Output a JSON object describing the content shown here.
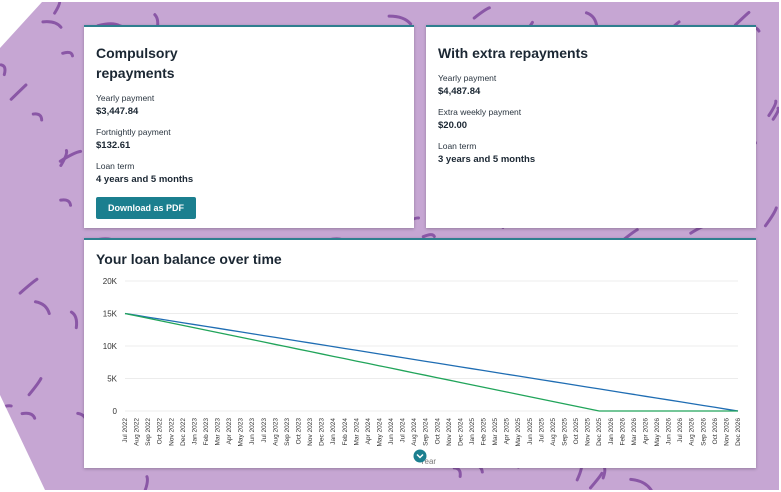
{
  "cards": [
    {
      "title": "Compulsory repayments",
      "fields": [
        {
          "label": "Yearly payment",
          "value": "$3,447.84"
        },
        {
          "label": "Fortnightly payment",
          "value": "$132.61"
        },
        {
          "label": "Loan term",
          "value": "4 years and 5 months"
        }
      ],
      "button": "Download as PDF"
    },
    {
      "title": "With extra repayments",
      "fields": [
        {
          "label": "Yearly payment",
          "value": "$4,487.84"
        },
        {
          "label": "Extra weekly payment",
          "value": "$20.00"
        },
        {
          "label": "Loan term",
          "value": "3 years and 5 months"
        }
      ]
    }
  ],
  "chart_data": {
    "type": "line",
    "title": "Your loan balance over time",
    "x_label": "Year",
    "categories": [
      "Jul 2022",
      "Aug 2022",
      "Sep 2022",
      "Oct 2022",
      "Nov 2022",
      "Dec 2022",
      "Jan 2023",
      "Feb 2023",
      "Mar 2023",
      "Apr 2023",
      "May 2023",
      "Jun 2023",
      "Jul 2023",
      "Aug 2023",
      "Sep 2023",
      "Oct 2023",
      "Nov 2023",
      "Dec 2023",
      "Jan 2024",
      "Feb 2024",
      "Mar 2024",
      "Apr 2024",
      "May 2024",
      "Jun 2024",
      "Jul 2024",
      "Aug 2024",
      "Sep 2024",
      "Oct 2024",
      "Nov 2024",
      "Dec 2024",
      "Jan 2025",
      "Feb 2025",
      "Mar 2025",
      "Apr 2025",
      "May 2025",
      "Jun 2025",
      "Jul 2025",
      "Aug 2025",
      "Sep 2025",
      "Oct 2025",
      "Nov 2025",
      "Dec 2025",
      "Jan 2026",
      "Feb 2026",
      "Mar 2026",
      "Apr 2026",
      "May 2026",
      "Jun 2026",
      "Jul 2026",
      "Aug 2026",
      "Sep 2026",
      "Oct 2026",
      "Nov 2026",
      "Dec 2026"
    ],
    "series": [
      {
        "color": "#1f6db3",
        "values": [
          15000,
          14720,
          14430,
          14150,
          13870,
          13580,
          13300,
          13020,
          12740,
          12450,
          12170,
          11890,
          11600,
          11320,
          11040,
          10750,
          10470,
          10190,
          9910,
          9620,
          9340,
          9060,
          8770,
          8490,
          8210,
          7920,
          7640,
          7360,
          7080,
          6790,
          6510,
          6230,
          5940,
          5660,
          5380,
          5090,
          4810,
          4530,
          4250,
          3960,
          3680,
          3400,
          3110,
          2830,
          2550,
          2260,
          1980,
          1700,
          1420,
          1130,
          850,
          570,
          280,
          0
        ]
      },
      {
        "color": "#21a45a",
        "values": [
          15000,
          14630,
          14270,
          13900,
          13540,
          13170,
          12800,
          12440,
          12070,
          11710,
          11340,
          10980,
          10610,
          10240,
          9880,
          9510,
          9150,
          8780,
          8410,
          8050,
          7680,
          7320,
          6950,
          6590,
          6220,
          5850,
          5490,
          5120,
          4760,
          4390,
          4020,
          3660,
          3290,
          2930,
          2560,
          2200,
          1830,
          1460,
          1100,
          730,
          370,
          0,
          0,
          0,
          0,
          0,
          0,
          0,
          0,
          0,
          0,
          0,
          0,
          0
        ]
      }
    ],
    "ylim": [
      0,
      20000
    ],
    "yticks": [
      0,
      {
        "value": 5000,
        "label": "5K"
      },
      {
        "value": 10000,
        "label": "10K"
      },
      {
        "value": 15000,
        "label": "15K"
      },
      {
        "value": 20000,
        "label": "20K"
      }
    ],
    "grid": true
  }
}
